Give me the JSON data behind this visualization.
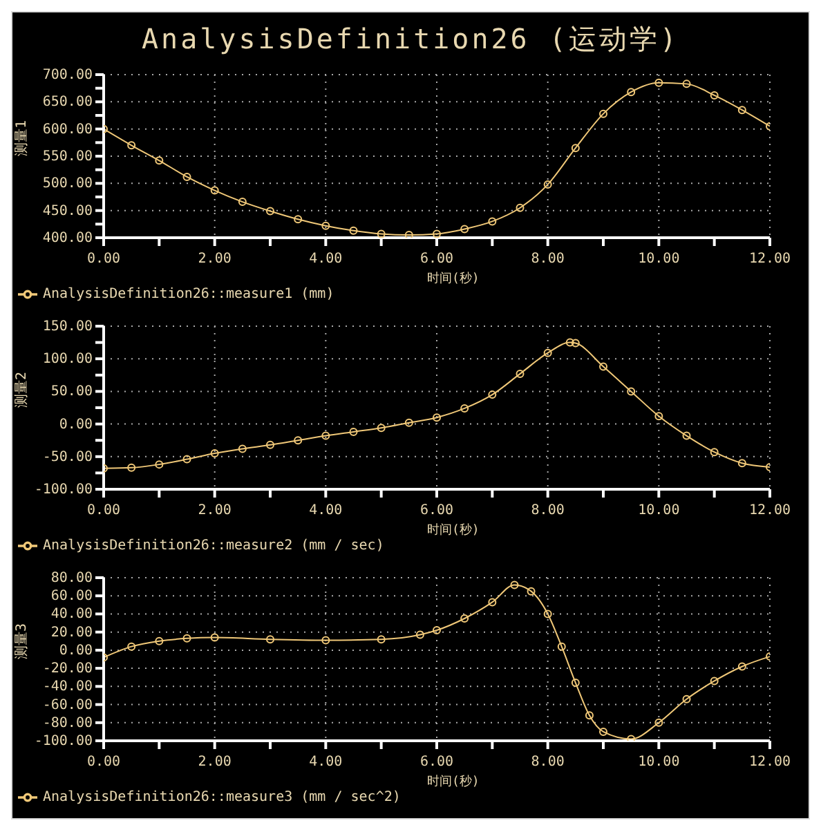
{
  "chart_data": [
    {
      "type": "line",
      "title": "AnalysisDefinition26 (运动学)",
      "xlabel": "时间(秒)",
      "ylabel": "测量1",
      "x": [
        0,
        0.5,
        1,
        1.5,
        2,
        2.5,
        3,
        3.5,
        4,
        4.5,
        5,
        5.5,
        6,
        6.5,
        7,
        7.5,
        8,
        8.5,
        9,
        9.5,
        10,
        10.5,
        11,
        11.5,
        12
      ],
      "series": [
        {
          "name": "AnalysisDefinition26::measure1 (mm)",
          "color": "#f0c878",
          "values": [
            600,
            570,
            542,
            512,
            487,
            466,
            449,
            434,
            422,
            413,
            407,
            405,
            407,
            416,
            430,
            455,
            498,
            565,
            628,
            668,
            685,
            683,
            662,
            635,
            605
          ]
        }
      ],
      "xlim": [
        0,
        12
      ],
      "xticks": [
        {
          "value": 0,
          "label": "0.00"
        },
        {
          "value": 1,
          "label": null
        },
        {
          "value": 2,
          "label": "2.00"
        },
        {
          "value": 3,
          "label": null
        },
        {
          "value": 4,
          "label": "4.00"
        },
        {
          "value": 5,
          "label": null
        },
        {
          "value": 6,
          "label": "6.00"
        },
        {
          "value": 7,
          "label": null
        },
        {
          "value": 8,
          "label": "8.00"
        },
        {
          "value": 9,
          "label": null
        },
        {
          "value": 10,
          "label": "10.00"
        },
        {
          "value": 11,
          "label": null
        },
        {
          "value": 12,
          "label": "12.00"
        }
      ],
      "ylim": [
        400,
        700
      ],
      "yticks": [
        {
          "value": 400,
          "label": "400.00"
        },
        {
          "value": 425,
          "label": null
        },
        {
          "value": 450,
          "label": "450.00"
        },
        {
          "value": 475,
          "label": null
        },
        {
          "value": 500,
          "label": "500.00"
        },
        {
          "value": 525,
          "label": null
        },
        {
          "value": 550,
          "label": "550.00"
        },
        {
          "value": 575,
          "label": null
        },
        {
          "value": 600,
          "label": "600.00"
        },
        {
          "value": 625,
          "label": null
        },
        {
          "value": 650,
          "label": "650.00"
        },
        {
          "value": 675,
          "label": null
        },
        {
          "value": 700,
          "label": "700.00"
        }
      ],
      "grid": true,
      "legend": "bottom",
      "marker": "circle",
      "line_style": "solid"
    },
    {
      "type": "line",
      "xlabel": "时间(秒)",
      "ylabel": "测量2",
      "x": [
        0,
        0.5,
        1,
        1.5,
        2,
        2.5,
        3,
        3.5,
        4,
        4.5,
        5,
        5.5,
        6,
        6.5,
        7,
        7.5,
        8,
        8.4,
        8.5,
        9,
        9.5,
        10,
        10.5,
        11,
        11.5,
        12
      ],
      "series": [
        {
          "name": "AnalysisDefinition26::measure2 (mm / sec)",
          "color": "#f0c878",
          "values": [
            -68,
            -67,
            -62,
            -54,
            -45,
            -38,
            -32,
            -25,
            -18,
            -12,
            -6,
            2,
            10,
            24,
            45,
            77,
            109,
            125,
            124,
            88,
            50,
            12,
            -18,
            -43,
            -60,
            -66
          ]
        }
      ],
      "xlim": [
        0,
        12
      ],
      "xticks": [
        {
          "value": 0,
          "label": "0.00"
        },
        {
          "value": 1,
          "label": null
        },
        {
          "value": 2,
          "label": "2.00"
        },
        {
          "value": 3,
          "label": null
        },
        {
          "value": 4,
          "label": "4.00"
        },
        {
          "value": 5,
          "label": null
        },
        {
          "value": 6,
          "label": "6.00"
        },
        {
          "value": 7,
          "label": null
        },
        {
          "value": 8,
          "label": "8.00"
        },
        {
          "value": 9,
          "label": null
        },
        {
          "value": 10,
          "label": "10.00"
        },
        {
          "value": 11,
          "label": null
        },
        {
          "value": 12,
          "label": "12.00"
        }
      ],
      "ylim": [
        -100,
        150
      ],
      "yticks": [
        {
          "value": -100,
          "label": "-100.00"
        },
        {
          "value": -75,
          "label": null
        },
        {
          "value": -50,
          "label": "-50.00"
        },
        {
          "value": -25,
          "label": null
        },
        {
          "value": 0,
          "label": "0.00"
        },
        {
          "value": 25,
          "label": null
        },
        {
          "value": 50,
          "label": "50.00"
        },
        {
          "value": 75,
          "label": null
        },
        {
          "value": 100,
          "label": "100.00"
        },
        {
          "value": 125,
          "label": null
        },
        {
          "value": 150,
          "label": "150.00"
        }
      ],
      "grid": true,
      "legend": "bottom",
      "marker": "circle",
      "line_style": "solid"
    },
    {
      "type": "line",
      "xlabel": "时间(秒)",
      "ylabel": "测量3",
      "x": [
        0,
        0.5,
        1,
        1.5,
        2,
        3,
        4,
        5,
        5.7,
        6,
        6.5,
        7,
        7.4,
        7.7,
        8,
        8.25,
        8.5,
        8.75,
        9,
        9.5,
        10,
        10.5,
        11,
        11.5,
        12
      ],
      "series": [
        {
          "name": "AnalysisDefinition26::measure3 (mm / sec^2)",
          "color": "#f0c878",
          "values": [
            -8,
            4,
            10,
            13,
            14,
            12,
            11,
            12,
            17,
            22,
            35,
            53,
            72,
            65,
            40,
            4,
            -36,
            -72,
            -90,
            -98,
            -80,
            -54,
            -34,
            -18,
            -7
          ]
        }
      ],
      "xlim": [
        0,
        12
      ],
      "xticks": [
        {
          "value": 0,
          "label": "0.00"
        },
        {
          "value": 1,
          "label": null
        },
        {
          "value": 2,
          "label": "2.00"
        },
        {
          "value": 3,
          "label": null
        },
        {
          "value": 4,
          "label": "4.00"
        },
        {
          "value": 5,
          "label": null
        },
        {
          "value": 6,
          "label": "6.00"
        },
        {
          "value": 7,
          "label": null
        },
        {
          "value": 8,
          "label": "8.00"
        },
        {
          "value": 9,
          "label": null
        },
        {
          "value": 10,
          "label": "10.00"
        },
        {
          "value": 11,
          "label": null
        },
        {
          "value": 12,
          "label": "12.00"
        }
      ],
      "ylim": [
        -100,
        80
      ],
      "yticks": [
        {
          "value": -100,
          "label": "-100.00"
        },
        {
          "value": -80,
          "label": "-80.00"
        },
        {
          "value": -60,
          "label": "-60.00"
        },
        {
          "value": -40,
          "label": "-40.00"
        },
        {
          "value": -20,
          "label": "-20.00"
        },
        {
          "value": 0,
          "label": "0.00"
        },
        {
          "value": 20,
          "label": "20.00"
        },
        {
          "value": 40,
          "label": "40.00"
        },
        {
          "value": 60,
          "label": "60.00"
        },
        {
          "value": 80,
          "label": "80.00"
        }
      ],
      "grid": true,
      "legend": "bottom",
      "marker": "circle",
      "line_style": "solid"
    }
  ]
}
